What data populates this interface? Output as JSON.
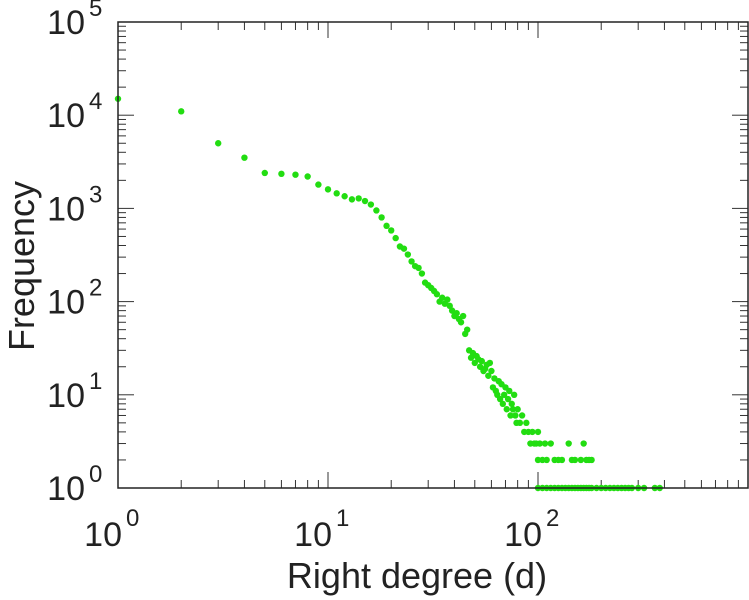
{
  "chart_data": {
    "type": "scatter",
    "xlabel": "Right degree (d)",
    "ylabel": "Frequency",
    "xscale": "log",
    "yscale": "log",
    "xlim": [
      1,
      1000
    ],
    "ylim": [
      1,
      100000
    ],
    "x_ticks": [
      {
        "base": "10",
        "exp": "0",
        "value": 1
      },
      {
        "base": "10",
        "exp": "1",
        "value": 10
      },
      {
        "base": "10",
        "exp": "2",
        "value": 100
      }
    ],
    "y_ticks": [
      {
        "base": "10",
        "exp": "0",
        "value": 1
      },
      {
        "base": "10",
        "exp": "1",
        "value": 10
      },
      {
        "base": "10",
        "exp": "2",
        "value": 100
      },
      {
        "base": "10",
        "exp": "3",
        "value": 1000
      },
      {
        "base": "10",
        "exp": "4",
        "value": 10000
      },
      {
        "base": "10",
        "exp": "5",
        "value": 100000
      }
    ],
    "grid": false,
    "legend": "none",
    "marker_color": "#22dd11",
    "series": [
      {
        "points": [
          [
            1,
            15000
          ],
          [
            2,
            11000
          ],
          [
            3,
            5000
          ],
          [
            4,
            3500
          ],
          [
            5,
            2400
          ],
          [
            6,
            2350
          ],
          [
            7,
            2300
          ],
          [
            8,
            2200
          ],
          [
            9,
            1800
          ],
          [
            10,
            1600
          ],
          [
            11,
            1450
          ],
          [
            12,
            1350
          ],
          [
            13,
            1250
          ],
          [
            14,
            1280
          ],
          [
            15,
            1200
          ],
          [
            16,
            1100
          ],
          [
            17,
            950
          ],
          [
            18,
            800
          ],
          [
            19,
            650
          ],
          [
            20,
            580
          ],
          [
            21,
            480
          ],
          [
            22,
            390
          ],
          [
            23,
            370
          ],
          [
            24,
            320
          ],
          [
            25,
            270
          ],
          [
            26,
            240
          ],
          [
            27,
            230
          ],
          [
            28,
            200
          ],
          [
            29,
            160
          ],
          [
            30,
            150
          ],
          [
            31,
            140
          ],
          [
            32,
            130
          ],
          [
            33,
            120
          ],
          [
            34,
            100
          ],
          [
            35,
            110
          ],
          [
            36,
            95
          ],
          [
            37,
            105
          ],
          [
            38,
            90
          ],
          [
            39,
            80
          ],
          [
            40,
            70
          ],
          [
            41,
            75
          ],
          [
            42,
            65
          ],
          [
            43,
            60
          ],
          [
            44,
            70
          ],
          [
            45,
            45
          ],
          [
            46,
            50
          ],
          [
            47,
            30
          ],
          [
            48,
            25
          ],
          [
            49,
            28
          ],
          [
            50,
            22
          ],
          [
            51,
            26
          ],
          [
            52,
            24
          ],
          [
            53,
            20
          ],
          [
            54,
            23
          ],
          [
            55,
            18
          ],
          [
            56,
            19
          ],
          [
            57,
            21
          ],
          [
            58,
            16
          ],
          [
            59,
            22
          ],
          [
            60,
            18
          ],
          [
            61,
            12
          ],
          [
            62,
            15
          ],
          [
            63,
            11
          ],
          [
            64,
            10
          ],
          [
            65,
            14
          ],
          [
            66,
            9
          ],
          [
            67,
            13
          ],
          [
            68,
            8
          ],
          [
            69,
            10
          ],
          [
            70,
            12
          ],
          [
            71,
            7
          ],
          [
            72,
            9
          ],
          [
            73,
            11
          ],
          [
            74,
            6
          ],
          [
            75,
            8
          ],
          [
            76,
            7
          ],
          [
            77,
            10
          ],
          [
            78,
            6
          ],
          [
            79,
            5
          ],
          [
            80,
            7
          ],
          [
            82,
            5
          ],
          [
            84,
            6
          ],
          [
            86,
            4
          ],
          [
            88,
            5
          ],
          [
            90,
            4
          ],
          [
            92,
            3
          ],
          [
            94,
            4
          ],
          [
            96,
            3
          ],
          [
            98,
            3
          ],
          [
            100,
            2
          ],
          [
            100,
            4
          ],
          [
            102,
            3
          ],
          [
            105,
            2
          ],
          [
            108,
            3
          ],
          [
            110,
            2
          ],
          [
            115,
            3
          ],
          [
            120,
            2
          ],
          [
            125,
            2
          ],
          [
            130,
            2
          ],
          [
            140,
            3
          ],
          [
            145,
            2
          ],
          [
            150,
            2
          ],
          [
            160,
            2
          ],
          [
            165,
            3
          ],
          [
            170,
            2
          ],
          [
            175,
            2
          ],
          [
            180,
            2
          ],
          [
            100,
            1
          ],
          [
            105,
            1
          ],
          [
            110,
            1
          ],
          [
            115,
            1
          ],
          [
            120,
            1
          ],
          [
            125,
            1
          ],
          [
            130,
            1
          ],
          [
            135,
            1
          ],
          [
            140,
            1
          ],
          [
            145,
            1
          ],
          [
            150,
            1
          ],
          [
            155,
            1
          ],
          [
            160,
            1
          ],
          [
            165,
            1
          ],
          [
            170,
            1
          ],
          [
            175,
            1
          ],
          [
            180,
            1
          ],
          [
            190,
            1
          ],
          [
            200,
            1
          ],
          [
            210,
            1
          ],
          [
            220,
            1
          ],
          [
            230,
            1
          ],
          [
            240,
            1
          ],
          [
            250,
            1
          ],
          [
            260,
            1
          ],
          [
            270,
            1
          ],
          [
            280,
            1
          ],
          [
            300,
            1
          ],
          [
            320,
            1
          ],
          [
            360,
            1
          ],
          [
            380,
            1
          ]
        ]
      }
    ]
  }
}
